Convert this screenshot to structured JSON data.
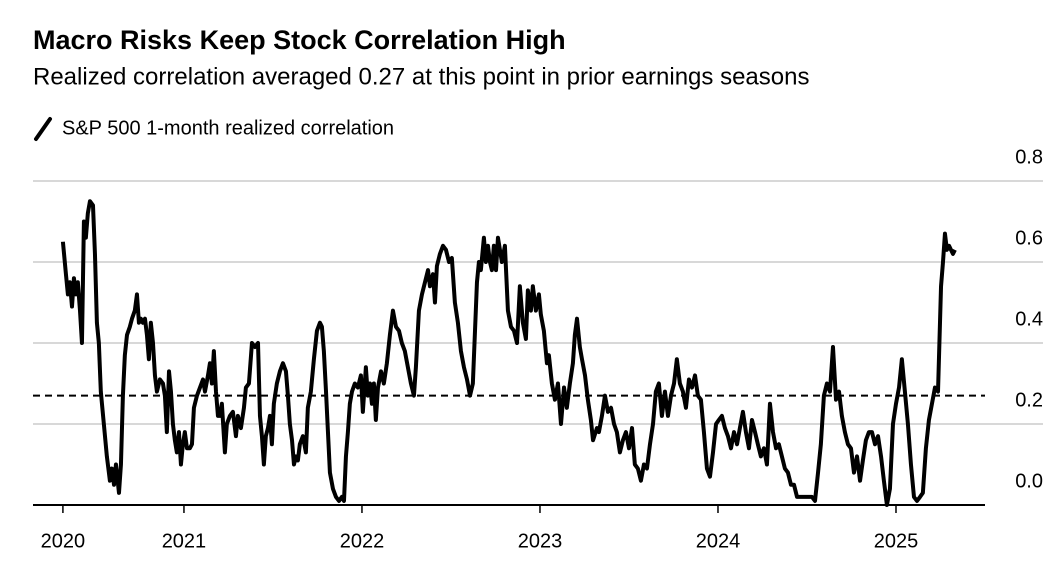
{
  "chart_data": {
    "type": "line",
    "title": "Macro Risks Keep Stock Correlation High",
    "subtitle": "Realized correlation averaged 0.27 at this point in prior earnings seasons",
    "x": [
      2020.32,
      2020.337,
      2020.348,
      2020.359,
      2020.371,
      2020.382,
      2020.393,
      2020.404,
      2020.416,
      2020.427,
      2020.438,
      2020.449,
      2020.46,
      2020.472,
      2020.489,
      2020.5,
      2020.511,
      2020.522,
      2020.533,
      2020.55,
      2020.567,
      2020.584,
      2020.595,
      2020.607,
      2020.618,
      2020.635,
      2020.646,
      2020.657,
      2020.668,
      2020.68,
      2020.696,
      2020.708,
      2020.724,
      2020.736,
      2020.747,
      2020.758,
      2020.769,
      2020.781,
      2020.792,
      2020.803,
      2020.814,
      2020.826,
      2020.837,
      2020.848,
      2020.865,
      2020.882,
      2020.893,
      2020.904,
      2020.916,
      2020.927,
      2020.938,
      2020.949,
      2020.96,
      2020.972,
      2020.983,
      2020.994,
      2021.005,
      2021.017,
      2021.033,
      2021.045,
      2021.056,
      2021.073,
      2021.09,
      2021.107,
      2021.118,
      2021.135,
      2021.146,
      2021.157,
      2021.168,
      2021.18,
      2021.191,
      2021.202,
      2021.213,
      2021.23,
      2021.241,
      2021.258,
      2021.275,
      2021.292,
      2021.303,
      2021.32,
      2021.337,
      2021.348,
      2021.365,
      2021.382,
      2021.399,
      2021.416,
      2021.427,
      2021.438,
      2021.449,
      2021.46,
      2021.472,
      2021.483,
      2021.494,
      2021.505,
      2021.522,
      2021.539,
      2021.556,
      2021.573,
      2021.584,
      2021.595,
      2021.607,
      2021.618,
      2021.629,
      2021.64,
      2021.651,
      2021.668,
      2021.685,
      2021.696,
      2021.713,
      2021.73,
      2021.747,
      2021.764,
      2021.775,
      2021.786,
      2021.798,
      2021.809,
      2021.82,
      2021.837,
      2021.854,
      2021.871,
      2021.887,
      2021.899,
      2021.91,
      2021.921,
      2021.932,
      2021.944,
      2021.96,
      2021.977,
      2021.994,
      2022.005,
      2022.022,
      2022.033,
      2022.045,
      2022.056,
      2022.067,
      2022.078,
      2022.09,
      2022.107,
      2022.123,
      2022.14,
      2022.157,
      2022.174,
      2022.191,
      2022.208,
      2022.224,
      2022.241,
      2022.258,
      2022.275,
      2022.292,
      2022.303,
      2022.32,
      2022.337,
      2022.354,
      2022.371,
      2022.382,
      2022.399,
      2022.41,
      2022.421,
      2022.438,
      2022.455,
      2022.472,
      2022.489,
      2022.505,
      2022.522,
      2022.539,
      2022.556,
      2022.573,
      2022.59,
      2022.607,
      2022.623,
      2022.635,
      2022.646,
      2022.657,
      2022.668,
      2022.685,
      2022.696,
      2022.708,
      2022.719,
      2022.73,
      2022.741,
      2022.753,
      2022.764,
      2022.775,
      2022.786,
      2022.803,
      2022.82,
      2022.837,
      2022.854,
      2022.871,
      2022.887,
      2022.904,
      2022.921,
      2022.932,
      2022.949,
      2022.96,
      2022.977,
      2022.994,
      2023.005,
      2023.022,
      2023.039,
      2023.05,
      2023.067,
      2023.084,
      2023.101,
      2023.118,
      2023.135,
      2023.151,
      2023.168,
      2023.185,
      2023.196,
      2023.208,
      2023.224,
      2023.236,
      2023.253,
      2023.269,
      2023.286,
      2023.298,
      2023.32,
      2023.331,
      2023.348,
      2023.365,
      2023.382,
      2023.399,
      2023.416,
      2023.432,
      2023.449,
      2023.466,
      2023.483,
      2023.5,
      2023.517,
      2023.533,
      2023.55,
      2023.567,
      2023.584,
      2023.601,
      2023.618,
      2023.635,
      2023.651,
      2023.668,
      2023.685,
      2023.702,
      2023.719,
      2023.736,
      2023.753,
      2023.769,
      2023.786,
      2023.803,
      2023.82,
      2023.837,
      2023.854,
      2023.871,
      2023.887,
      2023.904,
      2023.921,
      2023.938,
      2023.955,
      2023.972,
      2023.989,
      2024.005,
      2024.022,
      2024.039,
      2024.056,
      2024.073,
      2024.09,
      2024.107,
      2024.123,
      2024.14,
      2024.157,
      2024.174,
      2024.191,
      2024.208,
      2024.224,
      2024.241,
      2024.258,
      2024.275,
      2024.292,
      2024.309,
      2024.326,
      2024.342,
      2024.359,
      2024.376,
      2024.393,
      2024.41,
      2024.427,
      2024.444,
      2024.46,
      2024.477,
      2024.494,
      2024.511,
      2024.528,
      2024.545,
      2024.562,
      2024.578,
      2024.595,
      2024.612,
      2024.629,
      2024.646,
      2024.663,
      2024.68,
      2024.696,
      2024.713,
      2024.73,
      2024.747,
      2024.764,
      2024.781,
      2024.798,
      2024.814,
      2024.831,
      2024.848,
      2024.865,
      2024.882,
      2024.899,
      2024.916,
      2024.932,
      2024.949,
      2024.966,
      2024.983,
      2025.0,
      2025.017,
      2025.033,
      2025.05,
      2025.067,
      2025.084,
      2025.101,
      2025.118,
      2025.135,
      2025.151,
      2025.168,
      2025.185,
      2025.202,
      2025.219,
      2025.236,
      2025.253,
      2025.264,
      2025.275,
      2025.286,
      2025.298,
      2025.309,
      2025.32,
      2025.331
    ],
    "series": [
      {
        "name": "S&P 500 1-month realized correlation",
        "color": "#000000",
        "values": [
          0.65,
          0.57,
          0.52,
          0.55,
          0.49,
          0.56,
          0.52,
          0.55,
          0.48,
          0.4,
          0.7,
          0.66,
          0.72,
          0.75,
          0.74,
          0.62,
          0.45,
          0.4,
          0.28,
          0.2,
          0.12,
          0.06,
          0.09,
          0.05,
          0.1,
          0.03,
          0.1,
          0.27,
          0.37,
          0.42,
          0.44,
          0.46,
          0.48,
          0.52,
          0.45,
          0.46,
          0.45,
          0.46,
          0.42,
          0.36,
          0.45,
          0.4,
          0.32,
          0.28,
          0.31,
          0.3,
          0.27,
          0.18,
          0.33,
          0.28,
          0.2,
          0.16,
          0.13,
          0.18,
          0.1,
          0.15,
          0.18,
          0.14,
          0.14,
          0.15,
          0.24,
          0.27,
          0.29,
          0.31,
          0.28,
          0.32,
          0.35,
          0.3,
          0.38,
          0.28,
          0.22,
          0.22,
          0.25,
          0.13,
          0.2,
          0.22,
          0.23,
          0.17,
          0.22,
          0.19,
          0.24,
          0.29,
          0.3,
          0.4,
          0.39,
          0.4,
          0.22,
          0.17,
          0.1,
          0.17,
          0.19,
          0.22,
          0.15,
          0.25,
          0.3,
          0.33,
          0.35,
          0.33,
          0.27,
          0.2,
          0.16,
          0.1,
          0.12,
          0.11,
          0.15,
          0.17,
          0.13,
          0.24,
          0.28,
          0.36,
          0.43,
          0.45,
          0.44,
          0.38,
          0.28,
          0.18,
          0.08,
          0.04,
          0.02,
          0.01,
          0.02,
          0.01,
          0.12,
          0.18,
          0.25,
          0.28,
          0.3,
          0.29,
          0.32,
          0.23,
          0.34,
          0.27,
          0.3,
          0.25,
          0.3,
          0.21,
          0.29,
          0.33,
          0.3,
          0.35,
          0.42,
          0.48,
          0.44,
          0.43,
          0.4,
          0.38,
          0.34,
          0.3,
          0.27,
          0.34,
          0.48,
          0.52,
          0.55,
          0.58,
          0.54,
          0.57,
          0.5,
          0.59,
          0.62,
          0.64,
          0.63,
          0.6,
          0.61,
          0.5,
          0.45,
          0.38,
          0.34,
          0.31,
          0.27,
          0.3,
          0.43,
          0.55,
          0.6,
          0.58,
          0.66,
          0.6,
          0.64,
          0.6,
          0.58,
          0.64,
          0.58,
          0.66,
          0.63,
          0.6,
          0.64,
          0.48,
          0.44,
          0.43,
          0.4,
          0.54,
          0.45,
          0.41,
          0.53,
          0.48,
          0.54,
          0.48,
          0.52,
          0.47,
          0.43,
          0.35,
          0.37,
          0.3,
          0.26,
          0.3,
          0.2,
          0.29,
          0.24,
          0.3,
          0.35,
          0.42,
          0.46,
          0.39,
          0.36,
          0.32,
          0.26,
          0.21,
          0.16,
          0.19,
          0.18,
          0.22,
          0.27,
          0.23,
          0.24,
          0.2,
          0.18,
          0.13,
          0.16,
          0.18,
          0.14,
          0.19,
          0.1,
          0.09,
          0.06,
          0.1,
          0.09,
          0.15,
          0.2,
          0.28,
          0.3,
          0.22,
          0.28,
          0.22,
          0.27,
          0.3,
          0.36,
          0.3,
          0.28,
          0.24,
          0.31,
          0.29,
          0.32,
          0.27,
          0.26,
          0.18,
          0.09,
          0.07,
          0.13,
          0.2,
          0.21,
          0.22,
          0.19,
          0.17,
          0.14,
          0.18,
          0.15,
          0.19,
          0.23,
          0.18,
          0.14,
          0.21,
          0.18,
          0.15,
          0.12,
          0.14,
          0.1,
          0.25,
          0.18,
          0.14,
          0.15,
          0.12,
          0.09,
          0.08,
          0.05,
          0.05,
          0.02,
          0.02,
          0.02,
          0.02,
          0.02,
          0.02,
          0.01,
          0.08,
          0.15,
          0.27,
          0.3,
          0.28,
          0.39,
          0.26,
          0.28,
          0.22,
          0.18,
          0.15,
          0.14,
          0.08,
          0.12,
          0.06,
          0.11,
          0.16,
          0.18,
          0.18,
          0.15,
          0.17,
          0.12,
          0.06,
          0.0,
          0.04,
          0.2,
          0.25,
          0.29,
          0.36,
          0.28,
          0.2,
          0.1,
          0.02,
          0.01,
          0.02,
          0.03,
          0.14,
          0.21,
          0.25,
          0.29,
          0.28,
          0.54,
          0.6,
          0.67,
          0.63,
          0.64,
          0.63,
          0.62,
          0.63
        ]
      }
    ],
    "reference_line": {
      "value": 0.27,
      "dashed": true
    },
    "xlim": [
      2020.152,
      2025.5
    ],
    "xticks": [
      {
        "value": 2020.32,
        "label": "2020"
      },
      2021,
      2022,
      2023,
      2024,
      2025
    ],
    "ylim": [
      0,
      0.8
    ],
    "yticks": [
      {
        "value": 0,
        "label": "0.0"
      },
      0.2,
      0.4,
      0.6,
      0.8
    ],
    "grid": true
  }
}
